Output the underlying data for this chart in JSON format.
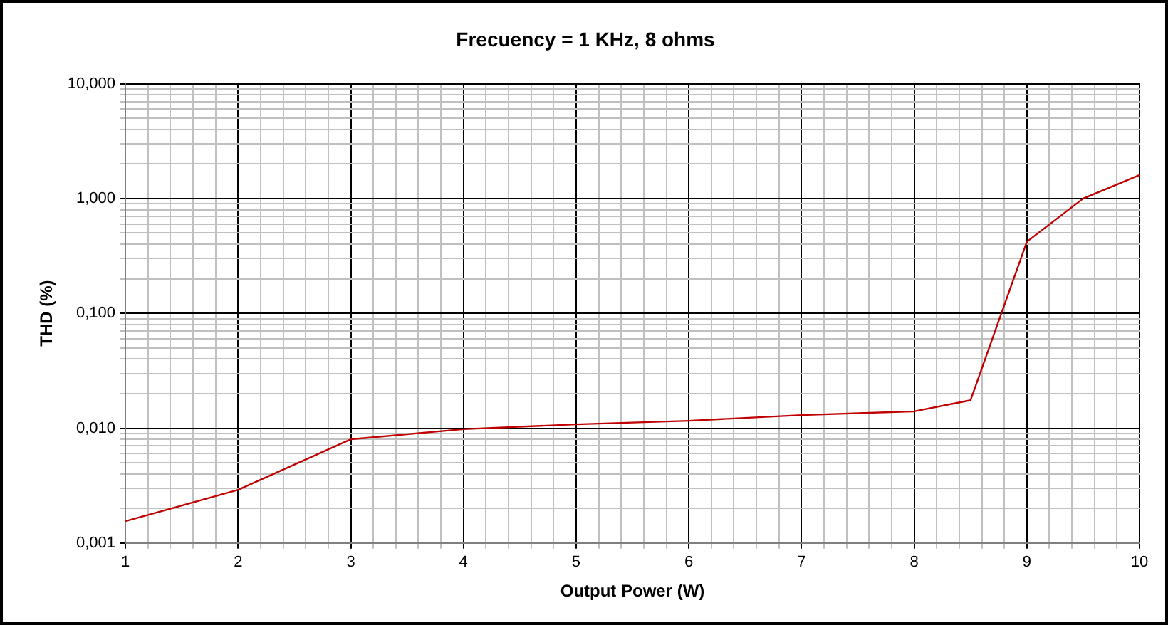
{
  "chart_data": {
    "type": "line",
    "title": "Frecuency = 1 KHz, 8 ohms",
    "xlabel": "Output Power (W)",
    "ylabel": "THD (%)",
    "x": [
      1,
      2,
      3,
      4,
      5,
      6,
      7,
      8,
      8.5,
      9,
      9.5,
      10
    ],
    "series": [
      {
        "color": "#c00000",
        "values": [
          0.00155,
          0.0029,
          0.008,
          0.0098,
          0.0108,
          0.0116,
          0.013,
          0.014,
          0.0175,
          0.42,
          1.0,
          1.6
        ]
      }
    ],
    "xlim": [
      1,
      10
    ],
    "xticks": [
      1,
      {
        "value": 1.2,
        "label": null
      },
      {
        "value": 1.4,
        "label": null
      },
      {
        "value": 1.6,
        "label": null
      },
      {
        "value": 1.8,
        "label": null
      },
      2,
      {
        "value": 2.2,
        "label": null
      },
      {
        "value": 2.4,
        "label": null
      },
      {
        "value": 2.6,
        "label": null
      },
      {
        "value": 2.8,
        "label": null
      },
      3,
      {
        "value": 3.2,
        "label": null
      },
      {
        "value": 3.4,
        "label": null
      },
      {
        "value": 3.6,
        "label": null
      },
      {
        "value": 3.8,
        "label": null
      },
      4,
      {
        "value": 4.2,
        "label": null
      },
      {
        "value": 4.4,
        "label": null
      },
      {
        "value": 4.6,
        "label": null
      },
      {
        "value": 4.8,
        "label": null
      },
      5,
      {
        "value": 5.2,
        "label": null
      },
      {
        "value": 5.4,
        "label": null
      },
      {
        "value": 5.6,
        "label": null
      },
      {
        "value": 5.8,
        "label": null
      },
      6,
      {
        "value": 6.2,
        "label": null
      },
      {
        "value": 6.4,
        "label": null
      },
      {
        "value": 6.6,
        "label": null
      },
      {
        "value": 6.8,
        "label": null
      },
      7,
      {
        "value": 7.2,
        "label": null
      },
      {
        "value": 7.4,
        "label": null
      },
      {
        "value": 7.6,
        "label": null
      },
      {
        "value": 7.8,
        "label": null
      },
      8,
      {
        "value": 8.2,
        "label": null
      },
      {
        "value": 8.4,
        "label": null
      },
      {
        "value": 8.6,
        "label": null
      },
      {
        "value": 8.8,
        "label": null
      },
      9,
      {
        "value": 9.2,
        "label": null
      },
      {
        "value": 9.4,
        "label": null
      },
      {
        "value": 9.6,
        "label": null
      },
      {
        "value": 9.8,
        "label": null
      },
      10
    ],
    "ylim": [
      0.001,
      10
    ],
    "yticks": [
      {
        "value": 0.001,
        "label": "0,001"
      },
      {
        "value": 0.002,
        "label": null
      },
      {
        "value": 0.003,
        "label": null
      },
      {
        "value": 0.004,
        "label": null
      },
      {
        "value": 0.005,
        "label": null
      },
      {
        "value": 0.006,
        "label": null
      },
      {
        "value": 0.007,
        "label": null
      },
      {
        "value": 0.008,
        "label": null
      },
      {
        "value": 0.009,
        "label": null
      },
      {
        "value": 0.01,
        "label": "0,010"
      },
      {
        "value": 0.02,
        "label": null
      },
      {
        "value": 0.03,
        "label": null
      },
      {
        "value": 0.04,
        "label": null
      },
      {
        "value": 0.05,
        "label": null
      },
      {
        "value": 0.06,
        "label": null
      },
      {
        "value": 0.07,
        "label": null
      },
      {
        "value": 0.08,
        "label": null
      },
      {
        "value": 0.09,
        "label": null
      },
      {
        "value": 0.1,
        "label": "0,100"
      },
      {
        "value": 0.2,
        "label": null
      },
      {
        "value": 0.3,
        "label": null
      },
      {
        "value": 0.4,
        "label": null
      },
      {
        "value": 0.5,
        "label": null
      },
      {
        "value": 0.6,
        "label": null
      },
      {
        "value": 0.7,
        "label": null
      },
      {
        "value": 0.8,
        "label": null
      },
      {
        "value": 0.9,
        "label": null
      },
      {
        "value": 1,
        "label": "1,000"
      },
      {
        "value": 2,
        "label": null
      },
      {
        "value": 3,
        "label": null
      },
      {
        "value": 4,
        "label": null
      },
      {
        "value": 5,
        "label": null
      },
      {
        "value": 6,
        "label": null
      },
      {
        "value": 7,
        "label": null
      },
      {
        "value": 8,
        "label": null
      },
      {
        "value": 9,
        "label": null
      },
      {
        "value": 10,
        "label": "10,000"
      }
    ],
    "log": "y",
    "grid": true,
    "marker": "none",
    "line_style": "solid"
  }
}
